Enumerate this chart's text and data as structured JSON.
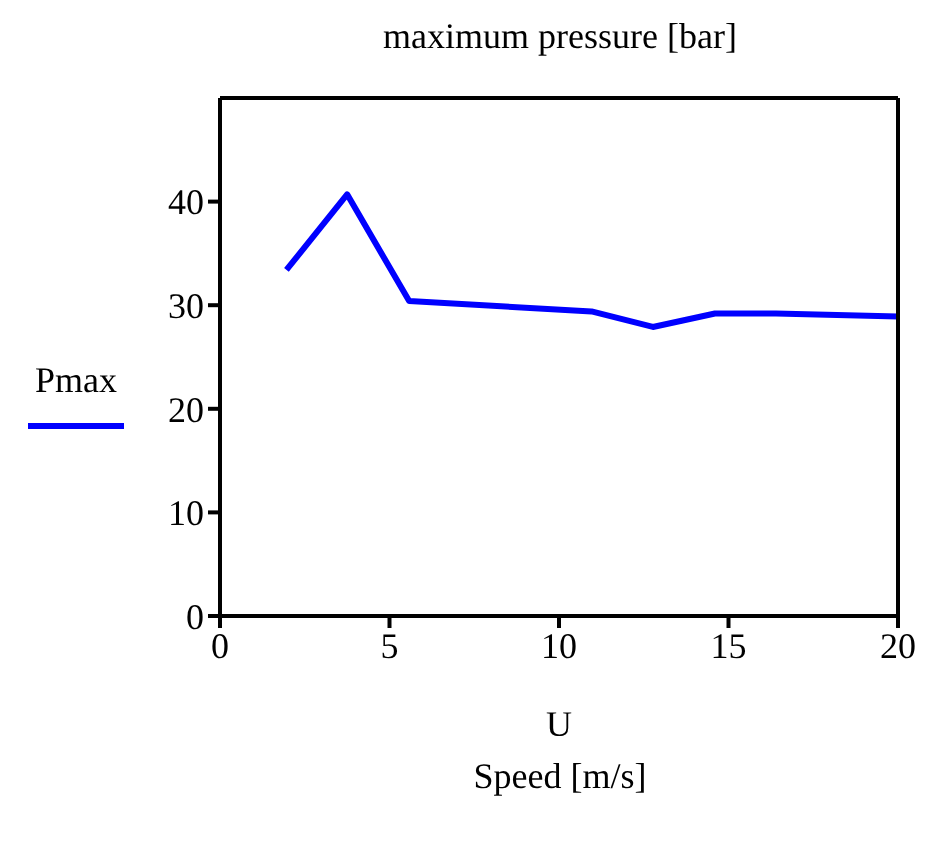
{
  "chart_data": {
    "type": "line",
    "title": "maximum pressure [bar]",
    "xlabel": "U",
    "annotations": [
      "Speed [m/s]"
    ],
    "x": [
      1.96,
      3.75,
      5.58,
      10.96,
      12.77,
      14.6,
      16.4,
      20
    ],
    "series": [
      {
        "name": "Pmax",
        "color": "#0000ff",
        "values": [
          33.4,
          40.7,
          30.4,
          29.4,
          27.9,
          29.2,
          29.2,
          28.9
        ]
      }
    ],
    "xlim": [
      0,
      20
    ],
    "xticks": [
      0,
      5,
      10,
      15,
      20
    ],
    "ylim": [
      0,
      50
    ],
    "yticks": [
      0,
      10,
      20,
      30,
      40
    ],
    "legend": "left",
    "grid": false,
    "marker": "none",
    "line_style": "solid"
  }
}
